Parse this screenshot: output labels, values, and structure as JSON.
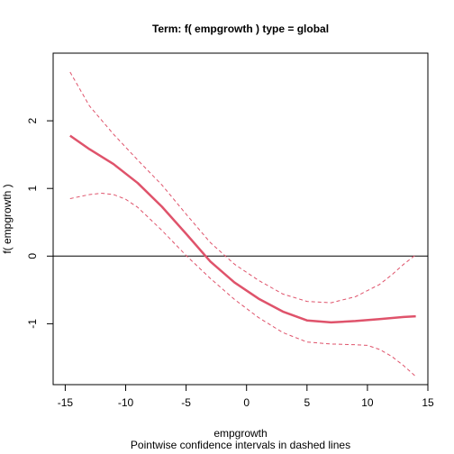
{
  "chart_data": {
    "type": "line",
    "title": "Term:  f( empgrowth )  type =  global",
    "xlabel": "empgrowth",
    "ylabel": "f( empgrowth )",
    "subtitle": "Pointwise confidence intervals in dashed lines",
    "xlim": [
      -16,
      15
    ],
    "ylim": [
      -1.9,
      3.0
    ],
    "x_ticks": [
      -15,
      -10,
      -5,
      0,
      5,
      10,
      15
    ],
    "y_ticks": [
      -1,
      0,
      1,
      2
    ],
    "reference_line": 0,
    "grid": false,
    "colors": {
      "curve": "#DF536B",
      "reference": "#000000",
      "axis": "#000000"
    },
    "series": [
      {
        "role": "estimate",
        "style": "solid",
        "x": [
          -14.6,
          -13,
          -11,
          -9,
          -7,
          -5,
          -3,
          -1,
          1,
          3,
          5,
          7,
          9,
          11,
          13,
          14
        ],
        "y": [
          1.78,
          1.58,
          1.36,
          1.08,
          0.73,
          0.33,
          -0.08,
          -0.39,
          -0.63,
          -0.82,
          -0.95,
          -0.98,
          -0.96,
          -0.93,
          -0.9,
          -0.89
        ]
      },
      {
        "role": "upper",
        "style": "dashed",
        "x": [
          -14.6,
          -13,
          -11,
          -9,
          -7,
          -5,
          -3,
          -1,
          1,
          3,
          5,
          7,
          9,
          11,
          12,
          13,
          14
        ],
        "y": [
          2.72,
          2.22,
          1.8,
          1.42,
          1.05,
          0.62,
          0.2,
          -0.12,
          -0.36,
          -0.56,
          -0.67,
          -0.69,
          -0.6,
          -0.42,
          -0.28,
          -0.12,
          0.02
        ]
      },
      {
        "role": "lower",
        "style": "dashed",
        "x": [
          -14.6,
          -13,
          -12,
          -11,
          -10,
          -9,
          -7,
          -5,
          -3,
          -1,
          1,
          3,
          5,
          7,
          9,
          10,
          11,
          12,
          13,
          14
        ],
        "y": [
          0.85,
          0.91,
          0.93,
          0.91,
          0.84,
          0.72,
          0.38,
          0.01,
          -0.33,
          -0.64,
          -0.91,
          -1.13,
          -1.27,
          -1.3,
          -1.31,
          -1.32,
          -1.38,
          -1.48,
          -1.62,
          -1.78
        ]
      }
    ]
  }
}
